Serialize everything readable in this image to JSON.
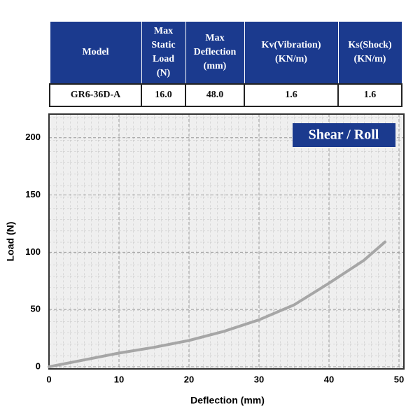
{
  "table": {
    "header": [
      "Model",
      "Max Static Load (N)",
      "Max Deflection (mm)",
      "Kv(Vibration) (KN/m)",
      "Ks(Shock) (KN/m)"
    ],
    "rows": [
      [
        "GR6-36D-A",
        "16.0",
        "48.0",
        "1.6",
        "1.6"
      ]
    ]
  },
  "chart_data": {
    "type": "line",
    "annotation": "Shear / Roll",
    "x_label": "Deflection (mm)",
    "y_label": "Load (N)",
    "x": [
      0,
      5,
      10,
      15,
      20,
      25,
      30,
      35,
      40,
      45,
      48
    ],
    "series": [
      {
        "name": "Shear / Roll",
        "color": "#a6a6a6",
        "values": [
          0,
          6,
          12,
          17,
          23,
          31,
          41,
          54,
          73,
          93,
          109
        ]
      }
    ],
    "xlim": [
      0,
      50
    ],
    "ylim": [
      0,
      220
    ],
    "xticks": [
      0,
      10,
      20,
      30,
      40,
      50
    ],
    "yticks": [
      0,
      50,
      100,
      150,
      200
    ],
    "grid": true
  }
}
